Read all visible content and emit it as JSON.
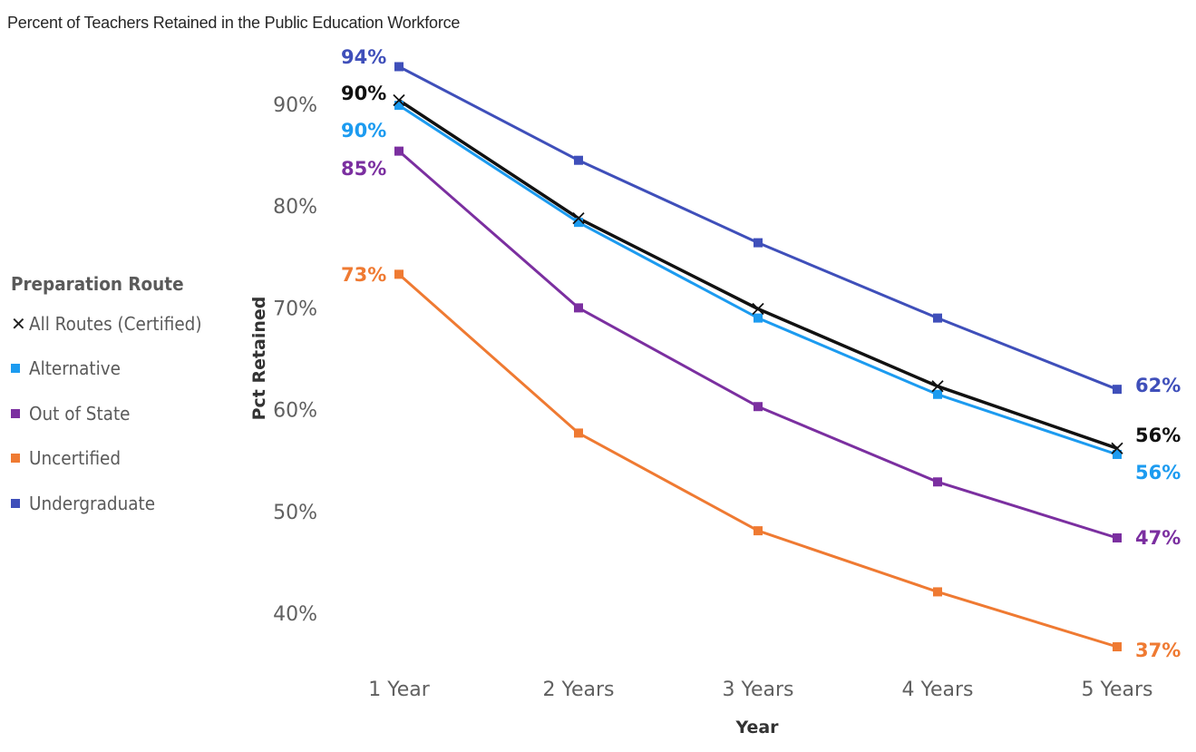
{
  "chart_data": {
    "type": "line",
    "title": "Percent of Teachers Retained in the Public Education Workforce",
    "xlabel": "Year",
    "ylabel": "Pct Retained",
    "categories": [
      "1 Year",
      "2 Years",
      "3 Years",
      "4 Years",
      "5 Years"
    ],
    "ylim": [
      0.35,
      0.96
    ],
    "yticks": [
      {
        "value": 0.4,
        "label": "40%"
      },
      {
        "value": 0.5,
        "label": "50%"
      },
      {
        "value": 0.6,
        "label": "60%"
      },
      {
        "value": 0.7,
        "label": "70%"
      },
      {
        "value": 0.8,
        "label": "80%"
      },
      {
        "value": 0.9,
        "label": "90%"
      }
    ],
    "grid": false,
    "legend": {
      "title": "Preparation Route",
      "placement": "left"
    },
    "series": [
      {
        "name": "All Routes (Certified)",
        "color": "#111111",
        "marker": "x",
        "values": [
          0.904,
          0.788,
          0.699,
          0.623,
          0.562
        ],
        "start_label": "90%",
        "end_label": "56%"
      },
      {
        "name": "Alternative",
        "color": "#1c9bf0",
        "marker": "square",
        "values": [
          0.899,
          0.784,
          0.69,
          0.615,
          0.556
        ],
        "start_label": "90%",
        "end_label": "56%"
      },
      {
        "name": "Out of State",
        "color": "#7b2fa0",
        "marker": "square",
        "values": [
          0.854,
          0.7,
          0.603,
          0.529,
          0.474
        ],
        "start_label": "85%",
        "end_label": "47%"
      },
      {
        "name": "Uncertified",
        "color": "#ef7a32",
        "marker": "square",
        "values": [
          0.733,
          0.577,
          0.481,
          0.421,
          0.367
        ],
        "start_label": "73%",
        "end_label": "37%"
      },
      {
        "name": "Undergraduate",
        "color": "#3f4fba",
        "marker": "square",
        "values": [
          0.937,
          0.845,
          0.764,
          0.69,
          0.62
        ],
        "start_label": "94%",
        "end_label": "62%"
      }
    ]
  }
}
